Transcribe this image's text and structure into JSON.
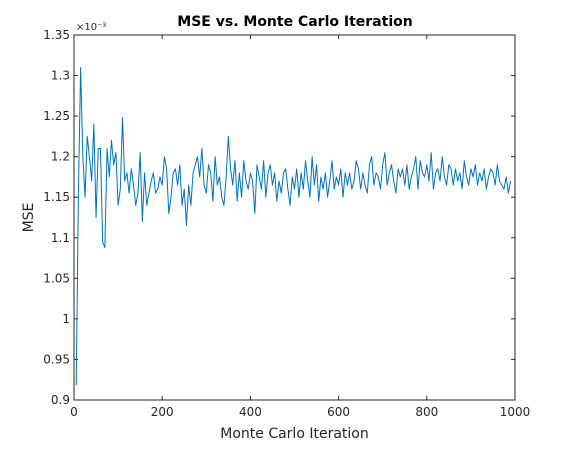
{
  "chart_data": {
    "type": "line",
    "title": "MSE vs. Monte Carlo Iteration",
    "xlabel": "Monte Carlo Iteration",
    "ylabel": "MSE",
    "y_multiplier": "×10⁻³",
    "xlim": [
      0,
      1000
    ],
    "ylim": [
      0.9,
      1.35
    ],
    "x_ticks": [
      0,
      200,
      400,
      600,
      800,
      1000
    ],
    "y_ticks": [
      0.9,
      0.95,
      1.0,
      1.05,
      1.1,
      1.15,
      1.2,
      1.25,
      1.3,
      1.35
    ],
    "x_tick_labels": [
      "0",
      "200",
      "400",
      "600",
      "800",
      "1000"
    ],
    "y_tick_labels": [
      "0.9",
      "0.95",
      "1",
      "1.05",
      "1.1",
      "1.15",
      "1.2",
      "1.25",
      "1.3",
      "1.35"
    ],
    "grid": false,
    "series": [
      {
        "color": "#0072BD",
        "x_start": 5,
        "x_step": 5,
        "values": [
          0.918,
          1.155,
          1.31,
          1.2,
          1.15,
          1.225,
          1.2,
          1.17,
          1.24,
          1.125,
          1.21,
          1.21,
          1.095,
          1.088,
          1.21,
          1.175,
          1.22,
          1.19,
          1.205,
          1.14,
          1.16,
          1.248,
          1.17,
          1.18,
          1.155,
          1.185,
          1.165,
          1.14,
          1.155,
          1.205,
          1.12,
          1.18,
          1.14,
          1.155,
          1.17,
          1.18,
          1.155,
          1.16,
          1.175,
          1.165,
          1.2,
          1.185,
          1.13,
          1.15,
          1.18,
          1.185,
          1.165,
          1.19,
          1.14,
          1.16,
          1.115,
          1.165,
          1.14,
          1.18,
          1.19,
          1.2,
          1.175,
          1.21,
          1.165,
          1.155,
          1.19,
          1.18,
          1.145,
          1.2,
          1.165,
          1.175,
          1.15,
          1.14,
          1.175,
          1.225,
          1.185,
          1.165,
          1.195,
          1.145,
          1.18,
          1.15,
          1.195,
          1.17,
          1.16,
          1.18,
          1.17,
          1.13,
          1.19,
          1.175,
          1.16,
          1.195,
          1.15,
          1.18,
          1.19,
          1.165,
          1.18,
          1.145,
          1.17,
          1.155,
          1.18,
          1.185,
          1.16,
          1.14,
          1.175,
          1.16,
          1.185,
          1.15,
          1.18,
          1.16,
          1.195,
          1.17,
          1.15,
          1.2,
          1.165,
          1.19,
          1.145,
          1.175,
          1.16,
          1.18,
          1.15,
          1.17,
          1.195,
          1.16,
          1.175,
          1.165,
          1.185,
          1.15,
          1.18,
          1.165,
          1.18,
          1.16,
          1.17,
          1.195,
          1.185,
          1.16,
          1.18,
          1.165,
          1.155,
          1.19,
          1.2,
          1.165,
          1.18,
          1.175,
          1.16,
          1.19,
          1.205,
          1.165,
          1.18,
          1.19,
          1.17,
          1.155,
          1.185,
          1.175,
          1.185,
          1.165,
          1.19,
          1.16,
          1.175,
          1.185,
          1.2,
          1.16,
          1.195,
          1.18,
          1.175,
          1.19,
          1.17,
          1.205,
          1.16,
          1.18,
          1.185,
          1.17,
          1.2,
          1.175,
          1.165,
          1.19,
          1.185,
          1.165,
          1.185,
          1.17,
          1.18,
          1.16,
          1.195,
          1.175,
          1.165,
          1.185,
          1.175,
          1.19,
          1.165,
          1.18,
          1.17,
          1.185,
          1.16,
          1.175,
          1.185,
          1.18,
          1.165,
          1.19,
          1.17,
          1.165,
          1.16,
          1.175,
          1.155,
          1.17
        ]
      }
    ]
  }
}
